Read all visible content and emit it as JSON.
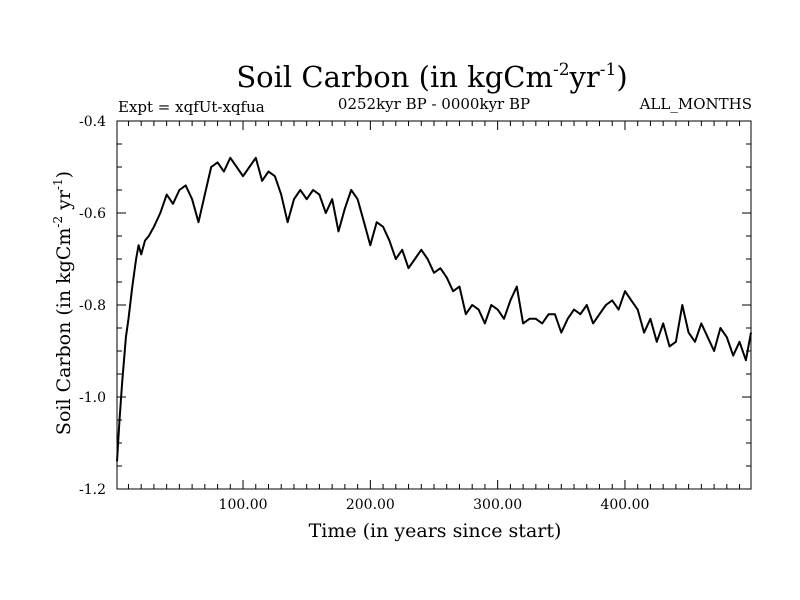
{
  "chart_data": {
    "type": "line",
    "title": "Soil Carbon (in kgCm",
    "title_sup1": "-2",
    "title_mid": "yr",
    "title_sup2": "-1",
    "title_end": ")",
    "subtitle_left": "Expt = xqfUt-xqfua",
    "subtitle_center": "0252kyr BP - 0000kyr BP",
    "subtitle_right": "ALL_MONTHS",
    "xlabel": "Time (in years since start)",
    "ylabel": "Soil Carbon (in kgCm",
    "ylabel_sup1": "-2",
    "ylabel_mid": " yr",
    "ylabel_sup2": "-1",
    "ylabel_end": ")",
    "xlim": [
      1,
      499
    ],
    "ylim": [
      -1.2,
      -0.4
    ],
    "xticks": [
      100,
      200,
      300,
      400
    ],
    "xtick_labels": [
      "100.00",
      "200.00",
      "300.00",
      "400.00"
    ],
    "yticks": [
      -1.2,
      -1.0,
      -0.8,
      -0.6,
      -0.4
    ],
    "ytick_labels": [
      "-1.2",
      "-1.0",
      "-0.8",
      "-0.6",
      "-0.4"
    ],
    "series": [
      {
        "name": "Soil Carbon",
        "color": "#000000",
        "x": [
          1,
          3,
          5,
          8,
          10,
          13,
          16,
          18,
          20,
          23,
          26,
          30,
          35,
          40,
          45,
          50,
          55,
          60,
          65,
          70,
          75,
          80,
          85,
          90,
          95,
          100,
          105,
          110,
          115,
          120,
          125,
          130,
          135,
          140,
          145,
          150,
          155,
          160,
          165,
          170,
          175,
          180,
          185,
          190,
          195,
          200,
          205,
          210,
          215,
          220,
          225,
          230,
          235,
          240,
          245,
          250,
          255,
          260,
          265,
          270,
          275,
          280,
          285,
          290,
          295,
          300,
          305,
          310,
          315,
          320,
          325,
          330,
          335,
          340,
          345,
          350,
          355,
          360,
          365,
          370,
          375,
          380,
          385,
          390,
          395,
          400,
          405,
          410,
          415,
          420,
          425,
          430,
          435,
          440,
          445,
          450,
          455,
          460,
          465,
          470,
          475,
          480,
          485,
          490,
          495,
          499
        ],
        "values": [
          -1.14,
          -1.05,
          -0.97,
          -0.87,
          -0.83,
          -0.76,
          -0.7,
          -0.67,
          -0.69,
          -0.66,
          -0.65,
          -0.63,
          -0.6,
          -0.56,
          -0.58,
          -0.55,
          -0.54,
          -0.57,
          -0.62,
          -0.56,
          -0.5,
          -0.49,
          -0.51,
          -0.48,
          -0.5,
          -0.52,
          -0.5,
          -0.48,
          -0.53,
          -0.51,
          -0.52,
          -0.56,
          -0.62,
          -0.57,
          -0.55,
          -0.57,
          -0.55,
          -0.56,
          -0.6,
          -0.57,
          -0.64,
          -0.59,
          -0.55,
          -0.57,
          -0.62,
          -0.67,
          -0.62,
          -0.63,
          -0.66,
          -0.7,
          -0.68,
          -0.72,
          -0.7,
          -0.68,
          -0.7,
          -0.73,
          -0.72,
          -0.74,
          -0.77,
          -0.76,
          -0.82,
          -0.8,
          -0.81,
          -0.84,
          -0.8,
          -0.81,
          -0.83,
          -0.79,
          -0.76,
          -0.84,
          -0.83,
          -0.83,
          -0.84,
          -0.82,
          -0.82,
          -0.86,
          -0.83,
          -0.81,
          -0.82,
          -0.8,
          -0.84,
          -0.82,
          -0.8,
          -0.79,
          -0.81,
          -0.77,
          -0.79,
          -0.81,
          -0.86,
          -0.83,
          -0.88,
          -0.84,
          -0.89,
          -0.88,
          -0.8,
          -0.86,
          -0.88,
          -0.84,
          -0.87,
          -0.9,
          -0.85,
          -0.87,
          -0.91,
          -0.88,
          -0.92,
          -0.86
        ]
      }
    ]
  }
}
